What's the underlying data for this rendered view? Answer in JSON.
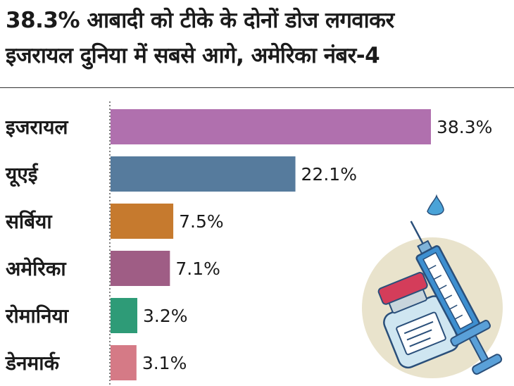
{
  "title_lines": [
    "38.3% आबादी को टीके के दोनों डोज लगवाकर",
    "इजरायल दुनिया में सबसे आगे, अमेरिका नंबर-4"
  ],
  "colors": {
    "bars": [
      "#b070ae",
      "#567b9d",
      "#c67a2e",
      "#9f5d85",
      "#2e9b77",
      "#d57a86"
    ],
    "illustration_circle": "#e9e3cc"
  },
  "chart_data": {
    "type": "bar",
    "orientation": "horizontal",
    "categories": [
      "इजरायल",
      "यूएई",
      "सर्बिया",
      "अमेरिका",
      "रोमानिया",
      "डेनमार्क"
    ],
    "values": [
      38.3,
      22.1,
      7.5,
      7.1,
      3.2,
      3.1
    ],
    "value_labels": [
      "38.3%",
      "22.1%",
      "7.5%",
      "7.1%",
      "3.2%",
      "3.1%"
    ],
    "xlim": [
      0,
      40
    ],
    "grid": false
  }
}
